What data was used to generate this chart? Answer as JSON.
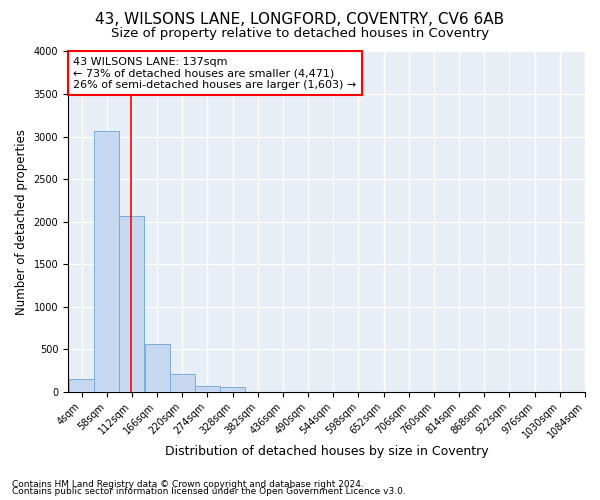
{
  "title": "43, WILSONS LANE, LONGFORD, COVENTRY, CV6 6AB",
  "subtitle": "Size of property relative to detached houses in Coventry",
  "xlabel": "Distribution of detached houses by size in Coventry",
  "ylabel": "Number of detached properties",
  "footnote1": "Contains HM Land Registry data © Crown copyright and database right 2024.",
  "footnote2": "Contains public sector information licensed under the Open Government Licence v3.0.",
  "annotation_title": "43 WILSONS LANE: 137sqm",
  "annotation_line1": "← 73% of detached houses are smaller (4,471)",
  "annotation_line2": "26% of semi-detached houses are larger (1,603) →",
  "property_size": 137,
  "bin_edges": [
    4,
    58,
    112,
    166,
    220,
    274,
    328,
    382,
    436,
    490,
    544,
    598,
    652,
    706,
    760,
    814,
    868,
    922,
    976,
    1030,
    1084
  ],
  "bar_heights": [
    150,
    3060,
    2060,
    560,
    210,
    65,
    55,
    0,
    0,
    0,
    0,
    0,
    0,
    0,
    0,
    0,
    0,
    0,
    0,
    0
  ],
  "bar_color": "#c5d8ef",
  "bar_edge_color": "#7aadd4",
  "line_color": "red",
  "ylim": [
    0,
    4000
  ],
  "yticks": [
    0,
    500,
    1000,
    1500,
    2000,
    2500,
    3000,
    3500,
    4000
  ],
  "plot_bg_color": "#e8eef5",
  "title_fontsize": 11,
  "subtitle_fontsize": 9.5,
  "xlabel_fontsize": 9,
  "ylabel_fontsize": 8.5,
  "tick_fontsize": 7,
  "annotation_fontsize": 8,
  "footnote_fontsize": 6.5
}
